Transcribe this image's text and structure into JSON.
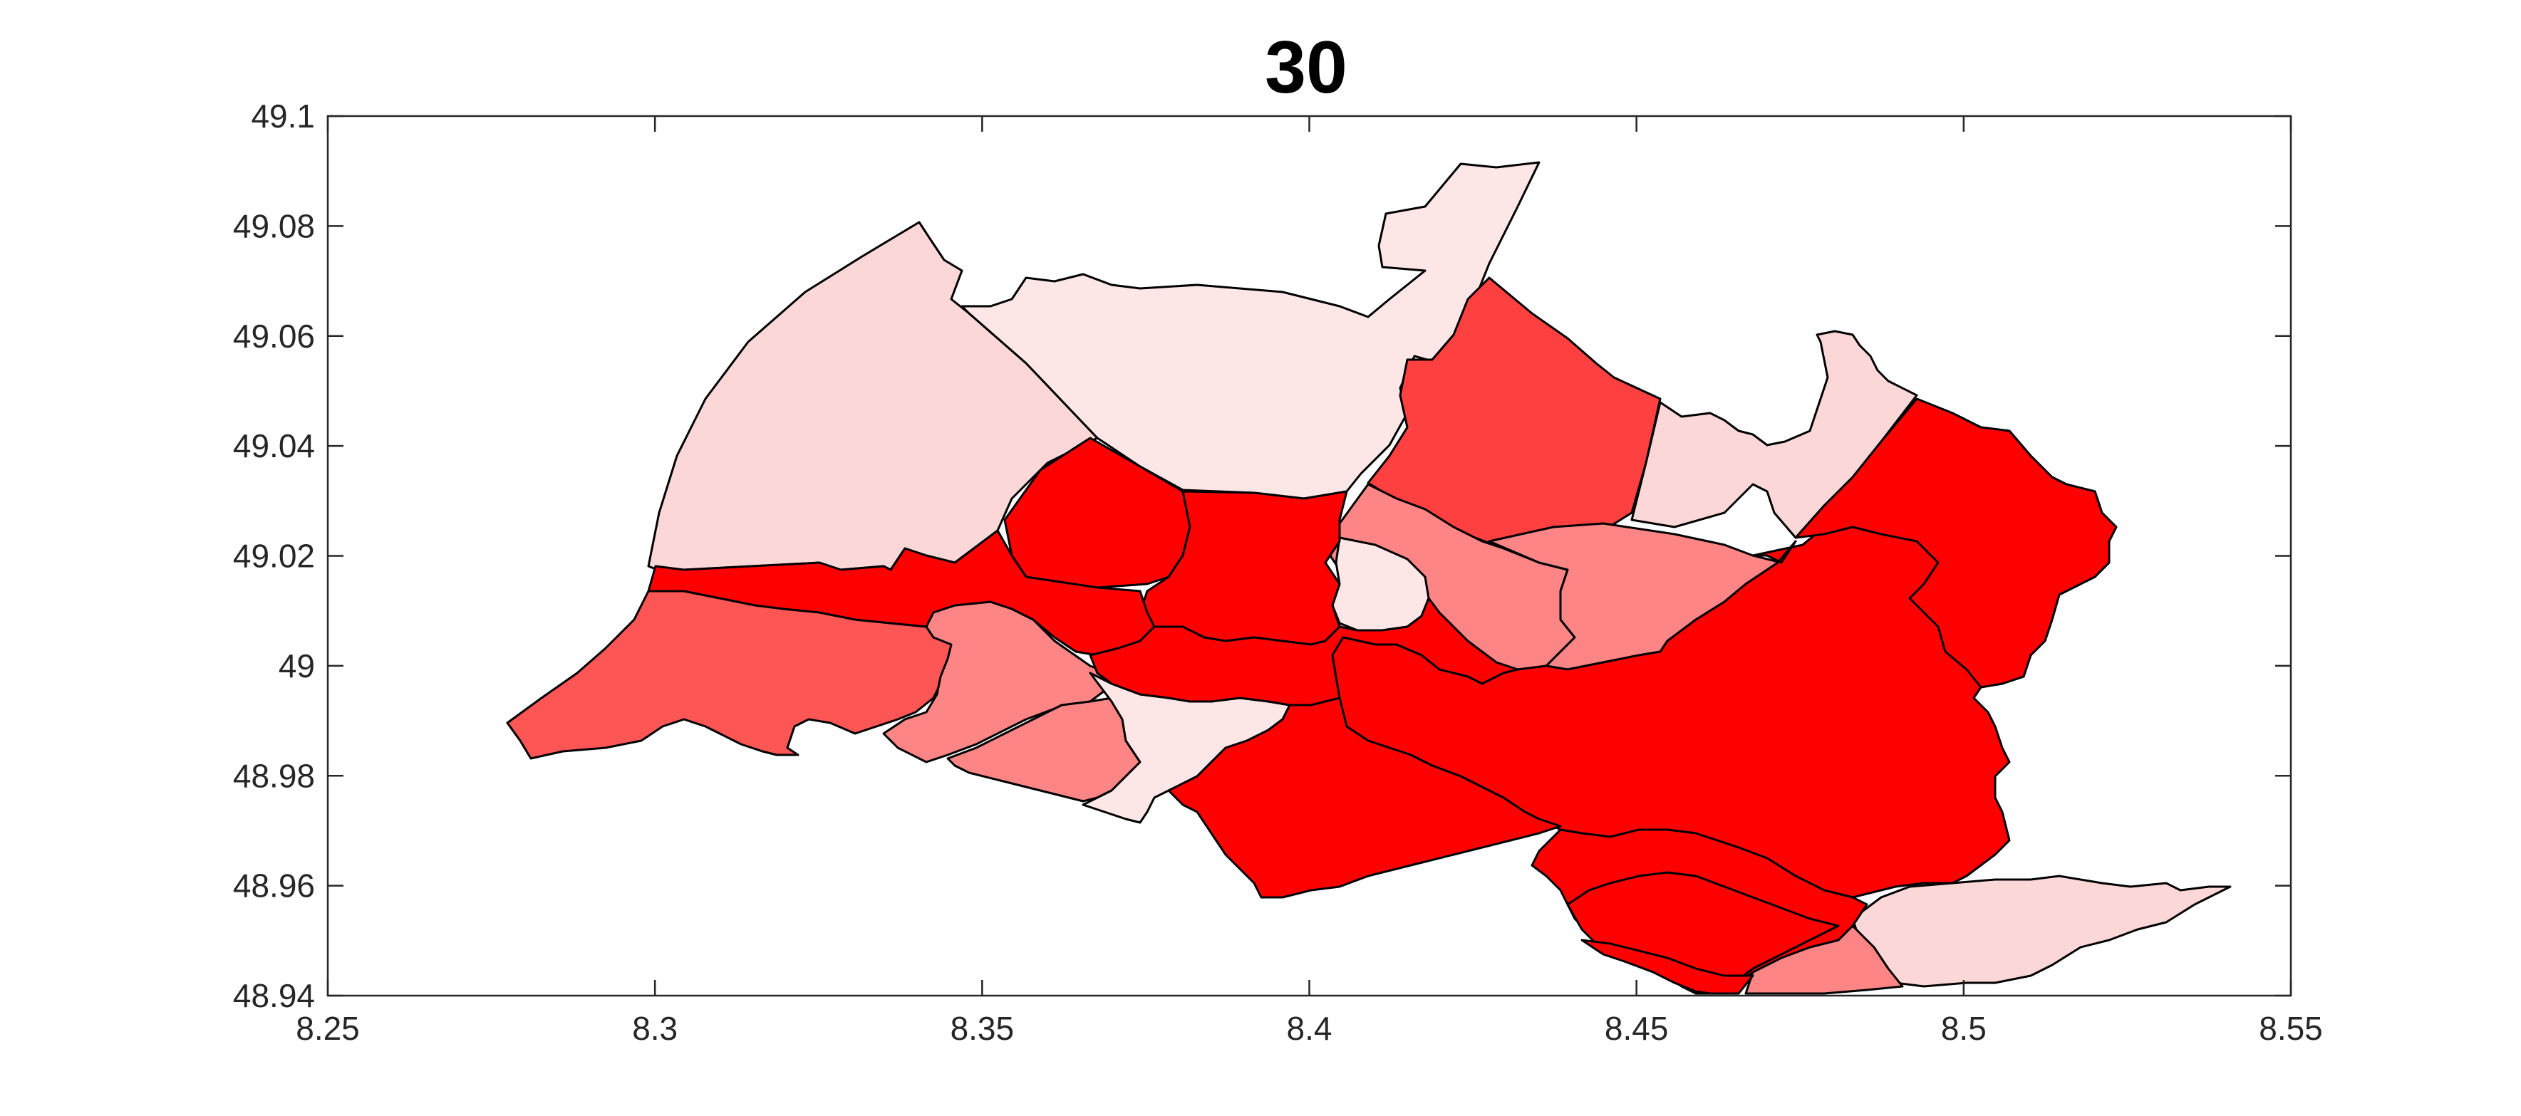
{
  "title": "30",
  "colors": {
    "axis": "#262626",
    "border": "#000000",
    "palette": {
      "very_light": "#fde6e6",
      "light": "#fcd7d7",
      "medium": "#fd8585",
      "medium_dark": "#fe5555",
      "dark": "#ff4040",
      "full": "#ff0000"
    }
  },
  "chart_data": {
    "type": "map",
    "title": "30",
    "xlim": [
      8.25,
      8.55
    ],
    "ylim": [
      48.94,
      49.1
    ],
    "x_ticks": [
      "8.25",
      "8.3",
      "8.35",
      "8.4",
      "8.45",
      "8.5",
      "8.55"
    ],
    "y_ticks": [
      "48.94",
      "48.96",
      "48.98",
      "49",
      "49.02",
      "49.04",
      "49.06",
      "49.08",
      "49.1"
    ],
    "legend": "none",
    "grid": false,
    "regions": [
      {
        "id": "north-west",
        "fill": "light"
      },
      {
        "id": "north",
        "fill": "very_light"
      },
      {
        "id": "north-spur",
        "fill": "very_light"
      },
      {
        "id": "north-center-east",
        "fill": "dark"
      },
      {
        "id": "north-east",
        "fill": "light"
      },
      {
        "id": "center-north",
        "fill": "medium"
      },
      {
        "id": "center-east",
        "fill": "medium"
      },
      {
        "id": "center-inner",
        "fill": "very_light"
      },
      {
        "id": "west",
        "fill": "medium_dark"
      },
      {
        "id": "west-south",
        "fill": "medium"
      },
      {
        "id": "south-west-small",
        "fill": "medium"
      },
      {
        "id": "south-center-light",
        "fill": "very_light"
      },
      {
        "id": "south-east-light",
        "fill": "light"
      },
      {
        "id": "south-small",
        "fill": "medium"
      },
      {
        "id": "center-red-1",
        "fill": "full"
      },
      {
        "id": "center-red-2",
        "fill": "full"
      },
      {
        "id": "center-red-3",
        "fill": "full"
      },
      {
        "id": "center-red-4",
        "fill": "full"
      },
      {
        "id": "east-big",
        "fill": "full"
      },
      {
        "id": "south-red-1",
        "fill": "full"
      },
      {
        "id": "south-red-2",
        "fill": "full"
      },
      {
        "id": "south-red-3",
        "fill": "full"
      },
      {
        "id": "south-red-4",
        "fill": "full"
      }
    ]
  }
}
